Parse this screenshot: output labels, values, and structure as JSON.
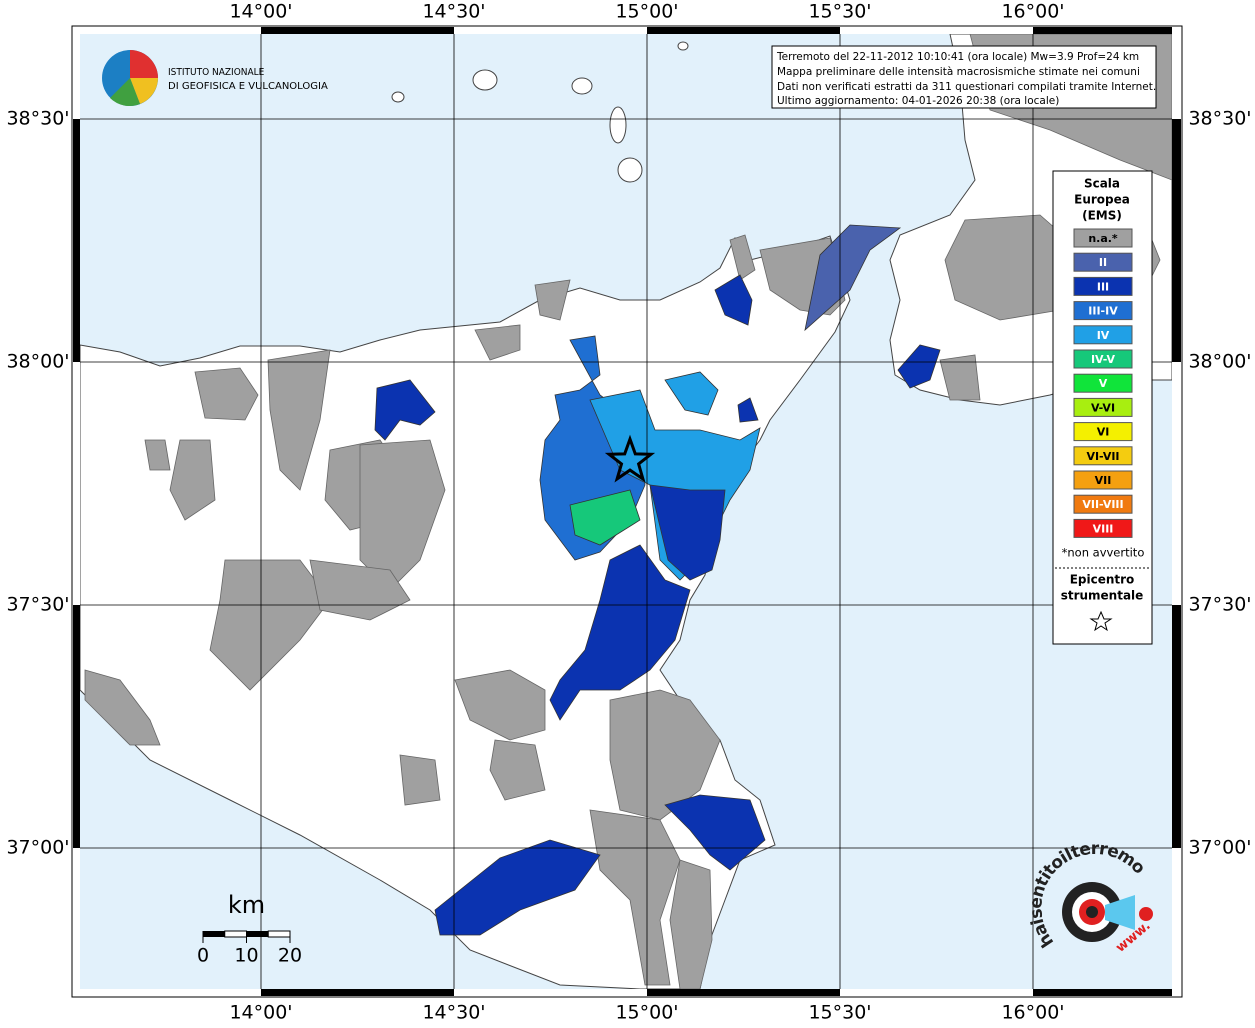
{
  "info_box": {
    "lines": [
      "Terremoto del 22-11-2012 10:10:41 (ora locale) Mw=3.9 Prof=24 km",
      "Mappa preliminare delle intensità macrosismiche stimate nei comuni",
      "Dati non verificati estratti da 311 questionari compilati tramite Internet.",
      "Ultimo aggiornamento: 04-01-2026 20:38 (ora locale)"
    ]
  },
  "logo": {
    "line1": "ISTITUTO NAZIONALE",
    "line2": "DI GEOFISICA E VULCANOLOGIA"
  },
  "legend": {
    "title": [
      "Scala",
      "Europea",
      "(EMS)"
    ],
    "items": [
      {
        "label": "n.a.*",
        "color": "#a0a0a0"
      },
      {
        "label": "II",
        "color": "#4a62ad"
      },
      {
        "label": "III",
        "color": "#0b33b0"
      },
      {
        "label": "III-IV",
        "color": "#1f6fd2"
      },
      {
        "label": "IV",
        "color": "#20a0e6"
      },
      {
        "label": "IV-V",
        "color": "#16c87a"
      },
      {
        "label": "V",
        "color": "#10e43a"
      },
      {
        "label": "V-VI",
        "color": "#a8ee10"
      },
      {
        "label": "VI",
        "color": "#f4f000"
      },
      {
        "label": "VI-VII",
        "color": "#f4cc10"
      },
      {
        "label": "VII",
        "color": "#f4a010"
      },
      {
        "label": "VII-VIII",
        "color": "#f07a10"
      },
      {
        "label": "VIII",
        "color": "#f01818"
      }
    ],
    "note": "*non avvertito",
    "epicenter_title": [
      "Epicentro",
      "strumentale"
    ]
  },
  "grid": {
    "lon": [
      {
        "value": 14.0,
        "label": "14°00'"
      },
      {
        "value": 14.5,
        "label": "14°30'"
      },
      {
        "value": 15.0,
        "label": "15°00'"
      },
      {
        "value": 15.5,
        "label": "15°30'"
      },
      {
        "value": 16.0,
        "label": "16°00'"
      }
    ],
    "lat": [
      {
        "value": 38.5,
        "label": "38°30'"
      },
      {
        "value": 38.0,
        "label": "38°00'"
      },
      {
        "value": 37.5,
        "label": "37°30'"
      },
      {
        "value": 37.0,
        "label": "37°00'"
      }
    ]
  },
  "epicenter": {
    "lon": 14.956,
    "lat": 37.796
  },
  "scale_bar": {
    "unit": "km",
    "ticks": [
      0,
      10,
      20
    ]
  },
  "site_logo": {
    "text": "haisentitoilterremoto.it",
    "prefix": "www."
  }
}
